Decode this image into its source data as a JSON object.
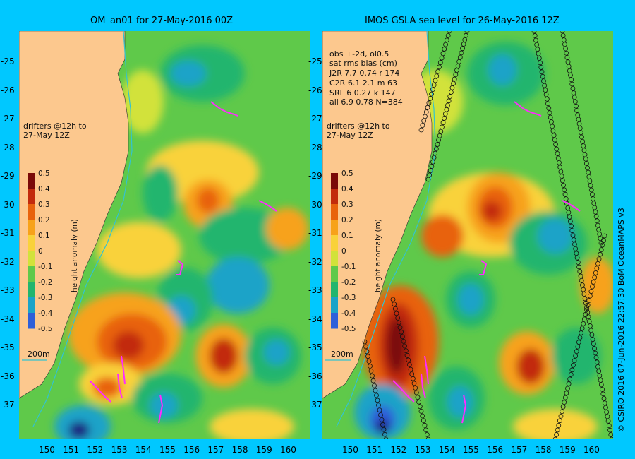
{
  "left_panel": {
    "title": "OM_an01 for 27-May-2016 00Z",
    "drifters_text": [
      "drifters @12h to",
      "27-May 12Z"
    ],
    "isobath_label": "200m"
  },
  "right_panel": {
    "title": "IMOS GSLA sea level  for 26-May-2016 12Z",
    "drifters_text": [
      "drifters @12h to",
      "27-May 12Z"
    ],
    "isobath_label": "200m",
    "stats": [
      "obs +-2d, oi0.5",
      "sat rms bias (cm)",
      "J2R   7.7 0.74 r 174",
      "C2R   6.1 2.1 m 63",
      "SRL   6 0.27 k 147",
      "all   6.9 0.78 N=384"
    ]
  },
  "colorbar": {
    "label": "height anomaly (m)",
    "ticks": [
      "0.5",
      "0.4",
      "0.3",
      "0.2",
      "0.1",
      "0",
      "-0.1",
      "-0.2",
      "-0.3",
      "-0.4",
      "-0.5"
    ],
    "colors": [
      "#7a0a08",
      "#c22a0c",
      "#e8620c",
      "#f7a21a",
      "#f9d23a",
      "#d2e23a",
      "#5fc94a",
      "#21b56e",
      "#1aa3c8",
      "#2d5fd9",
      "#1a1a80"
    ]
  },
  "map": {
    "lon_ticks": [
      "150",
      "151",
      "152",
      "153",
      "154",
      "155",
      "156",
      "157",
      "158",
      "159",
      "160"
    ],
    "lat_ticks": [
      "-25",
      "-26",
      "-27",
      "-28",
      "-29",
      "-30",
      "-31",
      "-32",
      "-33",
      "-34",
      "-35",
      "-36",
      "-37"
    ],
    "land_color": "#fcc88e",
    "drifter_color": "#ff2cff",
    "isobath_color": "#33c3d0"
  },
  "credit": "© CSIRO 2016   07-Jun-2016 22:57:30 BoM OceanMAPS v3"
}
